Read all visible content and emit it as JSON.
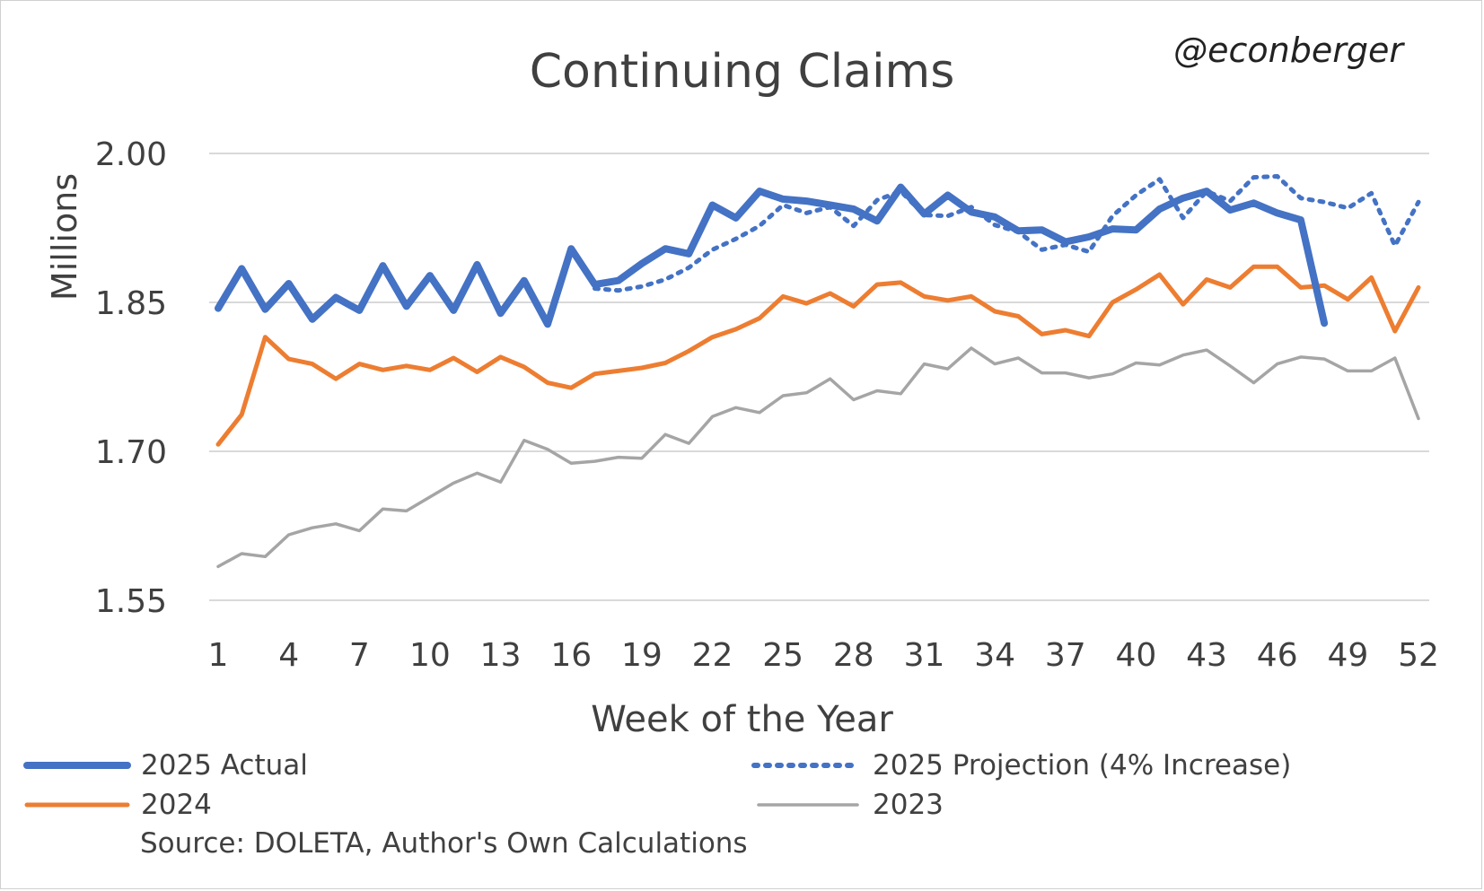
{
  "chart_data": {
    "type": "line",
    "title": "Continuing Claims",
    "watermark": "@econberger",
    "xlabel": "Week of the Year",
    "ylabel": "Millions",
    "ylim": [
      1.55,
      2.0
    ],
    "yticks": [
      "1.55",
      "1.70",
      "1.85",
      "2.00"
    ],
    "ytick_values": [
      1.55,
      1.7,
      1.85,
      2.0
    ],
    "xlim": [
      1,
      52
    ],
    "xticks": [
      "1",
      "4",
      "7",
      "10",
      "13",
      "16",
      "19",
      "22",
      "25",
      "28",
      "31",
      "34",
      "37",
      "40",
      "43",
      "46",
      "49",
      "52"
    ],
    "xtick_values": [
      1,
      4,
      7,
      10,
      13,
      16,
      19,
      22,
      25,
      28,
      31,
      34,
      37,
      40,
      43,
      46,
      49,
      52
    ],
    "grid": true,
    "series": [
      {
        "name": "2023",
        "color": "#a5a5a5",
        "style": "solid",
        "x": [
          1,
          2,
          3,
          4,
          5,
          6,
          7,
          8,
          9,
          10,
          11,
          12,
          13,
          14,
          15,
          16,
          17,
          18,
          19,
          20,
          21,
          22,
          23,
          24,
          25,
          26,
          27,
          28,
          29,
          30,
          31,
          32,
          33,
          34,
          35,
          36,
          37,
          38,
          39,
          40,
          41,
          42,
          43,
          44,
          45,
          46,
          47,
          48,
          49,
          50,
          51,
          52
        ],
        "values": [
          1.584,
          1.597,
          1.594,
          1.616,
          1.623,
          1.627,
          1.62,
          1.642,
          1.64,
          1.654,
          1.668,
          1.678,
          1.669,
          1.711,
          1.702,
          1.688,
          1.69,
          1.694,
          1.693,
          1.717,
          1.708,
          1.735,
          1.744,
          1.739,
          1.756,
          1.759,
          1.773,
          1.752,
          1.761,
          1.758,
          1.788,
          1.783,
          1.804,
          1.788,
          1.794,
          1.779,
          1.779,
          1.774,
          1.778,
          1.789,
          1.787,
          1.797,
          1.802,
          1.786,
          1.769,
          1.788,
          1.795,
          1.793,
          1.781,
          1.781,
          1.794,
          1.733
        ]
      },
      {
        "name": "2024",
        "color": "#ed7d31",
        "style": "solid",
        "x": [
          1,
          2,
          3,
          4,
          5,
          6,
          7,
          8,
          9,
          10,
          11,
          12,
          13,
          14,
          15,
          16,
          17,
          18,
          19,
          20,
          21,
          22,
          23,
          24,
          25,
          26,
          27,
          28,
          29,
          30,
          31,
          32,
          33,
          34,
          35,
          36,
          37,
          38,
          39,
          40,
          41,
          42,
          43,
          44,
          45,
          46,
          47,
          48,
          49,
          50,
          51,
          52
        ],
        "values": [
          1.707,
          1.737,
          1.815,
          1.793,
          1.788,
          1.773,
          1.788,
          1.782,
          1.786,
          1.782,
          1.794,
          1.78,
          1.795,
          1.785,
          1.769,
          1.764,
          1.778,
          1.781,
          1.784,
          1.789,
          1.801,
          1.815,
          1.823,
          1.834,
          1.856,
          1.849,
          1.859,
          1.846,
          1.868,
          1.87,
          1.856,
          1.852,
          1.856,
          1.841,
          1.836,
          1.818,
          1.822,
          1.816,
          1.85,
          1.863,
          1.878,
          1.848,
          1.873,
          1.865,
          1.886,
          1.886,
          1.865,
          1.867,
          1.853,
          1.875,
          1.821,
          1.865
        ]
      },
      {
        "name": "2025 Projection (4% Increase)",
        "color": "#4472c4",
        "style": "dotted",
        "x": [
          17,
          18,
          19,
          20,
          21,
          22,
          23,
          24,
          25,
          26,
          27,
          28,
          29,
          30,
          31,
          32,
          33,
          34,
          35,
          36,
          37,
          38,
          39,
          40,
          41,
          42,
          43,
          44,
          45,
          46,
          47,
          48,
          49,
          50,
          51,
          52
        ],
        "values": [
          1.864,
          1.862,
          1.866,
          1.873,
          1.885,
          1.903,
          1.914,
          1.927,
          1.948,
          1.94,
          1.946,
          1.927,
          1.953,
          1.962,
          1.938,
          1.937,
          1.946,
          1.928,
          1.921,
          1.903,
          1.908,
          1.901,
          1.937,
          1.958,
          1.974,
          1.935,
          1.962,
          1.952,
          1.976,
          1.977,
          1.955,
          1.951,
          1.945,
          1.96,
          1.907,
          1.951
        ]
      },
      {
        "name": "2025 Actual",
        "color": "#4472c4",
        "style": "solid",
        "x": [
          1,
          2,
          3,
          4,
          5,
          6,
          7,
          8,
          9,
          10,
          11,
          12,
          13,
          14,
          15,
          16,
          17,
          18,
          19,
          20,
          21,
          22,
          23,
          24,
          25,
          26,
          27,
          28,
          29,
          30,
          31,
          32,
          33,
          34,
          35,
          36,
          37,
          38,
          39,
          40,
          41,
          42,
          43,
          44,
          45,
          46,
          47,
          48
        ],
        "values": [
          1.844,
          1.884,
          1.843,
          1.869,
          1.833,
          1.855,
          1.842,
          1.887,
          1.846,
          1.877,
          1.842,
          1.888,
          1.839,
          1.872,
          1.828,
          1.904,
          1.868,
          1.872,
          1.889,
          1.904,
          1.899,
          1.948,
          1.935,
          1.962,
          1.954,
          1.952,
          1.948,
          1.944,
          1.932,
          1.966,
          1.939,
          1.958,
          1.941,
          1.936,
          1.922,
          1.923,
          1.911,
          1.916,
          1.924,
          1.923,
          1.944,
          1.955,
          1.962,
          1.943,
          1.95,
          1.94,
          1.933,
          1.829
        ]
      }
    ],
    "legend": [
      {
        "label": "2025 Actual",
        "color": "#4472c4",
        "style": "thick"
      },
      {
        "label": "2025 Projection (4% Increase)",
        "color": "#4472c4",
        "style": "dotted"
      },
      {
        "label": "2024",
        "color": "#ed7d31",
        "style": "solid"
      },
      {
        "label": "2023",
        "color": "#a5a5a5",
        "style": "solid"
      }
    ],
    "source": "Source: DOLETA, Author's Own Calculations"
  }
}
